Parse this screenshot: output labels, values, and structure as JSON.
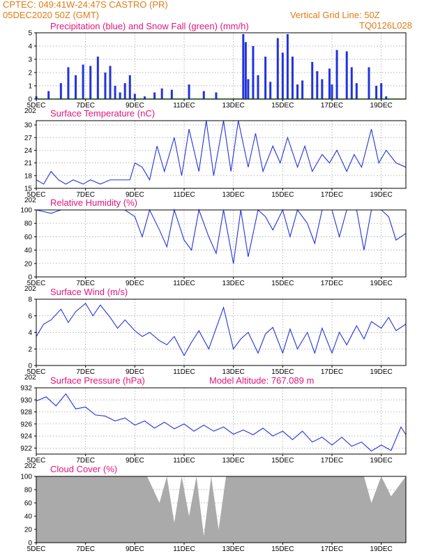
{
  "header": {
    "line1": "CPTEC:   049:41W-24:47S   CASTRO (PR)",
    "line2": "05DEC2020 50Z (GMT)",
    "grid_note": "Vertical Grid Line: 50Z",
    "code": "TQ0126L028"
  },
  "x_ticks": [
    "5DEC",
    "7DEC",
    "9DEC",
    "11DEC",
    "13DEC",
    "15DEC",
    "17DEC",
    "19DEC"
  ],
  "year_stub": "202",
  "colors": {
    "header": "#e07b12",
    "title": "#e0157a",
    "series": "#2233dd",
    "snow": "#22aa22",
    "cloud": "#aaaaaa",
    "grid": "#999999"
  },
  "panels": [
    {
      "id": "precip",
      "title": "Precipitation (blue) and Snow Fall (green) (mm/h)",
      "extra": "",
      "y_ticks": [
        "0",
        "1",
        "2",
        "3",
        "4",
        "5"
      ]
    },
    {
      "id": "temp",
      "title": "Surface Temperature (nC)",
      "extra": "",
      "y_ticks": [
        "15",
        "18",
        "21",
        "24",
        "27",
        "30"
      ]
    },
    {
      "id": "rh",
      "title": "Relative Humidity (%)",
      "extra": "",
      "y_ticks": [
        "0",
        "20",
        "40",
        "60",
        "80",
        "100"
      ]
    },
    {
      "id": "wind",
      "title": "Surface Wind (m/s)",
      "extra": "",
      "y_ticks": [
        "0",
        "2",
        "4",
        "6",
        "8"
      ]
    },
    {
      "id": "press",
      "title": "Surface Pressure (hPa)",
      "extra": "Model Altitude: 767.089 m",
      "y_ticks": [
        "922",
        "924",
        "926",
        "928",
        "930",
        "932"
      ]
    },
    {
      "id": "cloud",
      "title": "Cloud Cover (%)",
      "extra": "",
      "y_ticks": [
        "0",
        "20",
        "40",
        "60",
        "80",
        "100"
      ]
    }
  ],
  "chart_data": [
    {
      "type": "bar",
      "title": "Precipitation (blue) and Snow Fall (green) (mm/h)",
      "xlim": [
        5,
        20
      ],
      "ylim": [
        0,
        5
      ],
      "series": [
        {
          "name": "Precipitation",
          "x": [
            5.0,
            5.5,
            6.0,
            6.3,
            6.6,
            6.9,
            7.2,
            7.5,
            7.8,
            8.0,
            8.2,
            8.4,
            8.6,
            8.8,
            9.0,
            9.4,
            9.8,
            10.1,
            10.5,
            11.2,
            11.8,
            12.3,
            13.4,
            13.5,
            13.6,
            13.8,
            14.0,
            14.3,
            14.5,
            14.8,
            15.0,
            15.2,
            15.4,
            15.6,
            15.8,
            16.2,
            16.4,
            16.6,
            16.9,
            17.0,
            17.2,
            17.6,
            17.8,
            18.0,
            18.5,
            18.8,
            19.0,
            19.2
          ],
          "values": [
            0.2,
            0.6,
            1.2,
            2.4,
            1.8,
            2.6,
            2.5,
            3.2,
            2.0,
            2.5,
            1.0,
            0.5,
            1.2,
            1.8,
            0.4,
            0.2,
            0.5,
            0.8,
            0.7,
            1.1,
            0.6,
            0.5,
            4.9,
            4.3,
            1.5,
            4.0,
            1.8,
            3.2,
            1.3,
            4.6,
            3.5,
            4.9,
            3.2,
            1.1,
            1.4,
            2.8,
            2.1,
            1.5,
            2.3,
            1.1,
            3.7,
            3.6,
            2.4,
            1.2,
            2.4,
            1.0,
            1.2,
            0.2
          ]
        },
        {
          "name": "Snow Fall",
          "x": [
            5,
            20
          ],
          "values": [
            0,
            0
          ]
        }
      ]
    },
    {
      "type": "line",
      "title": "Surface Temperature (nC)",
      "xlim": [
        5,
        20
      ],
      "ylim": [
        15,
        31
      ],
      "series": [
        {
          "name": "Temperature",
          "x": [
            5.0,
            5.3,
            5.6,
            5.9,
            6.2,
            6.5,
            6.9,
            7.2,
            7.6,
            8.0,
            8.4,
            8.8,
            9.0,
            9.3,
            9.6,
            9.9,
            10.2,
            10.6,
            10.9,
            11.2,
            11.6,
            11.9,
            12.2,
            12.6,
            12.9,
            13.2,
            13.6,
            13.9,
            14.2,
            14.6,
            14.9,
            15.2,
            15.6,
            15.9,
            16.2,
            16.6,
            16.9,
            17.2,
            17.6,
            17.9,
            18.2,
            18.6,
            18.9,
            19.2,
            19.6,
            20.0
          ],
          "values": [
            17,
            16,
            19,
            17,
            16,
            17,
            16,
            17,
            16,
            17,
            17,
            17,
            21,
            20,
            17,
            25,
            19,
            27,
            18,
            29,
            19,
            31,
            18,
            31,
            19,
            31,
            20,
            28,
            19,
            25,
            21,
            27,
            20,
            25,
            19,
            23,
            21,
            24,
            19,
            23,
            20,
            29,
            21,
            24,
            21,
            20
          ]
        }
      ]
    },
    {
      "type": "line",
      "title": "Relative Humidity (%)",
      "xlim": [
        5,
        20
      ],
      "ylim": [
        0,
        100
      ],
      "series": [
        {
          "name": "Humidity",
          "x": [
            5.0,
            5.6,
            6.0,
            6.6,
            7.0,
            7.6,
            8.0,
            8.6,
            9.0,
            9.3,
            9.6,
            10.0,
            10.3,
            10.6,
            11.0,
            11.3,
            11.6,
            12.0,
            12.3,
            12.6,
            13.0,
            13.3,
            13.6,
            14.0,
            14.3,
            14.6,
            15.0,
            15.3,
            15.6,
            16.0,
            16.3,
            16.6,
            17.0,
            17.3,
            17.6,
            18.0,
            18.3,
            18.6,
            19.0,
            19.3,
            19.6,
            20.0
          ],
          "values": [
            100,
            95,
            100,
            100,
            100,
            100,
            100,
            100,
            90,
            60,
            100,
            70,
            45,
            100,
            55,
            40,
            100,
            60,
            35,
            100,
            20,
            100,
            30,
            100,
            90,
            70,
            100,
            60,
            100,
            80,
            50,
            100,
            100,
            60,
            100,
            100,
            40,
            100,
            100,
            90,
            55,
            65
          ]
        }
      ]
    },
    {
      "type": "line",
      "title": "Surface Wind (m/s)",
      "xlim": [
        5,
        20
      ],
      "ylim": [
        0,
        8
      ],
      "series": [
        {
          "name": "Wind speed",
          "x": [
            5.0,
            5.3,
            5.6,
            6.0,
            6.3,
            6.6,
            7.0,
            7.3,
            7.6,
            8.0,
            8.3,
            8.6,
            9.0,
            9.3,
            9.6,
            10.0,
            10.3,
            10.6,
            11.0,
            11.3,
            11.6,
            12.0,
            12.3,
            12.6,
            13.0,
            13.3,
            13.6,
            14.0,
            14.3,
            14.6,
            15.0,
            15.3,
            15.6,
            16.0,
            16.3,
            16.6,
            17.0,
            17.3,
            17.6,
            18.0,
            18.3,
            18.6,
            19.0,
            19.3,
            19.6,
            20.0
          ],
          "values": [
            3.5,
            5.0,
            5.5,
            6.8,
            5.2,
            6.5,
            7.5,
            6.0,
            7.3,
            5.8,
            4.5,
            5.5,
            4.2,
            3.5,
            4.0,
            3.0,
            2.5,
            3.5,
            1.2,
            2.8,
            4.2,
            2.0,
            4.5,
            7.0,
            2.0,
            3.2,
            4.0,
            1.5,
            3.8,
            4.6,
            1.5,
            4.4,
            2.0,
            4.0,
            1.5,
            4.5,
            1.5,
            4.0,
            2.5,
            4.8,
            3.2,
            5.3,
            4.5,
            5.8,
            4.2,
            5.0
          ]
        }
      ]
    },
    {
      "type": "line",
      "title": "Surface Pressure (hPa)",
      "xlim": [
        5,
        20
      ],
      "ylim": [
        921,
        932
      ],
      "series": [
        {
          "name": "Pressure",
          "x": [
            5.0,
            5.4,
            5.8,
            6.2,
            6.6,
            7.0,
            7.4,
            7.8,
            8.2,
            8.6,
            9.0,
            9.4,
            9.8,
            10.2,
            10.6,
            11.0,
            11.4,
            11.8,
            12.2,
            12.6,
            13.0,
            13.4,
            13.8,
            14.2,
            14.6,
            15.0,
            15.4,
            15.8,
            16.2,
            16.6,
            17.0,
            17.4,
            17.8,
            18.2,
            18.6,
            19.0,
            19.4,
            19.8,
            20.0
          ],
          "values": [
            929.8,
            930.5,
            929.0,
            931.0,
            928.5,
            928.8,
            927.5,
            927.3,
            926.5,
            927.0,
            925.8,
            926.5,
            925.3,
            926.3,
            925.2,
            926.0,
            924.8,
            925.8,
            924.8,
            925.5,
            924.3,
            925.0,
            924.2,
            925.3,
            924.0,
            924.8,
            923.4,
            924.8,
            923.0,
            923.8,
            922.5,
            923.8,
            922.3,
            923.0,
            921.5,
            922.5,
            921.6,
            925.5,
            924.2
          ]
        }
      ]
    },
    {
      "type": "area",
      "title": "Cloud Cover (%)",
      "xlim": [
        5,
        20
      ],
      "ylim": [
        0,
        100
      ],
      "series": [
        {
          "name": "Cloud cover",
          "x": [
            5.0,
            9.5,
            10.0,
            10.3,
            10.6,
            10.9,
            11.2,
            11.5,
            11.8,
            12.1,
            12.4,
            12.7,
            13.0,
            13.5,
            14.0,
            14.5,
            15.0,
            18.3,
            18.6,
            19.0,
            19.4,
            20.0
          ],
          "values": [
            100,
            100,
            60,
            100,
            30,
            100,
            40,
            100,
            10,
            100,
            20,
            100,
            100,
            100,
            100,
            100,
            100,
            100,
            60,
            100,
            70,
            100
          ]
        }
      ]
    }
  ]
}
